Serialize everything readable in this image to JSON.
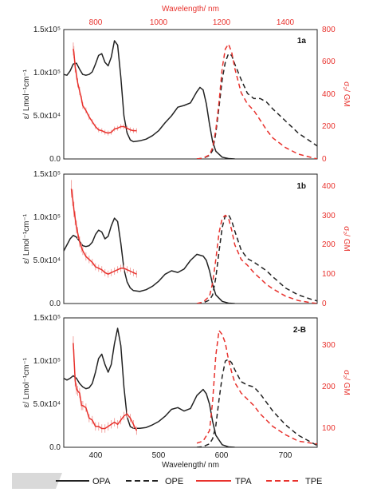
{
  "colors": {
    "opa": "#222222",
    "tpa": "#e8322d",
    "axis_right": "#e8322d",
    "band": "#d9d9d9"
  },
  "top_axis": {
    "label": "Wavelength/ nm",
    "ticks": [
      "800",
      "1000",
      "1200",
      "1400"
    ]
  },
  "bottom_axis": {
    "label": "Wavelength/ nm",
    "ticks": [
      "400",
      "500",
      "600",
      "700"
    ]
  },
  "legend": [
    {
      "label": "OPA",
      "style": "solid",
      "color": "#222222"
    },
    {
      "label": "OPE",
      "style": "dashed",
      "color": "#222222"
    },
    {
      "label": "TPA",
      "style": "solid",
      "color": "#e8322d"
    },
    {
      "label": "TPE",
      "style": "dashed",
      "color": "#e8322d"
    }
  ],
  "chart_data": [
    {
      "type": "line",
      "panel": "1a",
      "xlabel_bottom": "Wavelength/ nm",
      "xlim": [
        350,
        750
      ],
      "xlabel_top": "Wavelength/ nm",
      "xlim_top": [
        700,
        1500
      ],
      "ylabel_left": "ε/ Lmol⁻¹cm⁻¹",
      "ylim_left": [
        0,
        150000
      ],
      "yticks_left": [
        "0.0",
        "5.0x10⁴",
        "1.0x10⁵",
        "1.5x10⁵"
      ],
      "ylabel_right": "σ₂/ GM",
      "ylim_right": [
        0,
        800
      ],
      "yticks_right": [
        "0",
        "200",
        "400",
        "600",
        "800"
      ],
      "series": [
        {
          "name": "OPA",
          "axis": "left",
          "style": "solid",
          "x": [
            350,
            355,
            360,
            365,
            370,
            375,
            380,
            385,
            390,
            395,
            400,
            405,
            410,
            415,
            420,
            425,
            430,
            435,
            440,
            445,
            450,
            455,
            460,
            470,
            480,
            490,
            500,
            510,
            520,
            530,
            540,
            550,
            560,
            565,
            570,
            575,
            580,
            585,
            590,
            600,
            610,
            620
          ],
          "y": [
            98000,
            97000,
            102000,
            110000,
            111000,
            104000,
            98000,
            97000,
            98000,
            101000,
            110000,
            120000,
            122000,
            112000,
            108000,
            118000,
            137000,
            132000,
            95000,
            50000,
            30000,
            22000,
            20000,
            21000,
            23000,
            27000,
            33000,
            42000,
            50000,
            60000,
            62000,
            65000,
            78000,
            83000,
            80000,
            64000,
            40000,
            20000,
            9000,
            2000,
            500,
            0
          ]
        },
        {
          "name": "OPE",
          "axis": "left",
          "style": "dashed",
          "x": [
            560,
            570,
            580,
            585,
            590,
            595,
            600,
            605,
            610,
            615,
            620,
            630,
            640,
            650,
            660,
            670,
            680,
            700,
            720,
            740,
            750
          ],
          "y": [
            0,
            800,
            4000,
            10000,
            30000,
            60000,
            92000,
            112000,
            122000,
            120000,
            110000,
            92000,
            76000,
            70000,
            70000,
            66000,
            58000,
            44000,
            30000,
            20000,
            15000
          ]
        },
        {
          "name": "TPA",
          "axis": "right",
          "style": "solid",
          "x": [
            365,
            366,
            368,
            370,
            372,
            375,
            378,
            380,
            385,
            390,
            395,
            400,
            405,
            410,
            415,
            420,
            425,
            430,
            435,
            440,
            445,
            450,
            455,
            460,
            465
          ],
          "y": [
            680,
            660,
            570,
            520,
            470,
            420,
            370,
            330,
            300,
            260,
            230,
            200,
            180,
            175,
            165,
            160,
            165,
            185,
            190,
            200,
            200,
            190,
            180,
            175,
            175
          ],
          "err": [
            40,
            38,
            35,
            30,
            28,
            25,
            22,
            20,
            18,
            18,
            16,
            15,
            15,
            15,
            15,
            15,
            15,
            15,
            15,
            15,
            15,
            15,
            15,
            15,
            15
          ]
        },
        {
          "name": "TPE",
          "axis": "right",
          "style": "dashed",
          "x": [
            560,
            570,
            580,
            585,
            590,
            595,
            600,
            605,
            610,
            615,
            620,
            630,
            640,
            650,
            660,
            670,
            680,
            700,
            720,
            740,
            750
          ],
          "y": [
            0,
            5,
            25,
            70,
            180,
            350,
            560,
            680,
            710,
            660,
            560,
            410,
            340,
            300,
            240,
            180,
            130,
            70,
            30,
            10,
            0
          ]
        }
      ]
    },
    {
      "type": "line",
      "panel": "1b",
      "xlabel_bottom": "Wavelength/ nm",
      "xlim": [
        350,
        750
      ],
      "ylabel_left": "ε/ Lmol⁻¹cm⁻¹",
      "ylim_left": [
        0,
        150000
      ],
      "yticks_left": [
        "0.0",
        "5.0x10⁴",
        "1.0x10⁵",
        "1.5x10⁵"
      ],
      "ylabel_right": "σ₂/ GM",
      "ylim_right": [
        0,
        440
      ],
      "yticks_right": [
        "0",
        "100",
        "200",
        "300",
        "400"
      ],
      "series": [
        {
          "name": "OPA",
          "axis": "left",
          "style": "solid",
          "x": [
            350,
            355,
            360,
            365,
            370,
            375,
            380,
            385,
            390,
            395,
            400,
            405,
            410,
            415,
            420,
            425,
            430,
            435,
            440,
            445,
            450,
            455,
            460,
            470,
            480,
            490,
            500,
            510,
            520,
            530,
            540,
            550,
            560,
            570,
            575,
            580,
            585,
            590,
            600,
            610,
            620
          ],
          "y": [
            61000,
            68000,
            75000,
            79000,
            77000,
            72000,
            67000,
            66000,
            67000,
            71000,
            80000,
            85000,
            83000,
            75000,
            78000,
            90000,
            99000,
            95000,
            70000,
            40000,
            25000,
            18000,
            15000,
            14000,
            16000,
            20000,
            26000,
            34000,
            38000,
            36000,
            40000,
            50000,
            57000,
            55000,
            50000,
            38000,
            22000,
            10000,
            2500,
            500,
            0
          ]
        },
        {
          "name": "OPE",
          "axis": "left",
          "style": "dashed",
          "x": [
            560,
            570,
            580,
            585,
            590,
            595,
            600,
            605,
            610,
            615,
            620,
            630,
            640,
            650,
            660,
            670,
            680,
            700,
            720,
            740,
            750
          ],
          "y": [
            0,
            800,
            4000,
            10000,
            30000,
            60000,
            88000,
            102000,
            103000,
            96000,
            84000,
            62000,
            52000,
            48000,
            43000,
            38000,
            31000,
            18000,
            10000,
            5000,
            3000
          ]
        },
        {
          "name": "TPA",
          "axis": "right",
          "style": "solid",
          "x": [
            362,
            364,
            366,
            368,
            370,
            372,
            375,
            378,
            380,
            385,
            390,
            395,
            400,
            405,
            410,
            415,
            420,
            425,
            430,
            435,
            440,
            445,
            450,
            455,
            460,
            465
          ],
          "y": [
            390,
            360,
            320,
            290,
            260,
            240,
            210,
            190,
            180,
            160,
            150,
            140,
            125,
            120,
            115,
            105,
            100,
            105,
            110,
            115,
            120,
            120,
            115,
            110,
            105,
            100
          ],
          "err": [
            30,
            28,
            26,
            24,
            22,
            20,
            18,
            16,
            15,
            14,
            13,
            12,
            12,
            12,
            12,
            12,
            12,
            12,
            12,
            12,
            12,
            12,
            12,
            12,
            12,
            12
          ]
        },
        {
          "name": "TPE",
          "axis": "right",
          "style": "dashed",
          "x": [
            560,
            570,
            580,
            585,
            590,
            595,
            600,
            605,
            610,
            615,
            620,
            630,
            640,
            650,
            660,
            670,
            680,
            700,
            720,
            740,
            750
          ],
          "y": [
            0,
            5,
            25,
            70,
            150,
            240,
            290,
            300,
            290,
            250,
            200,
            150,
            130,
            105,
            85,
            65,
            50,
            25,
            10,
            3,
            0
          ]
        }
      ]
    },
    {
      "type": "line",
      "panel": "2-B",
      "xlabel_bottom": "Wavelength/ nm",
      "xlim": [
        350,
        750
      ],
      "xticks": [
        "400",
        "500",
        "600",
        "700"
      ],
      "ylabel_left": "ε/ Lmol⁻¹cm⁻¹",
      "ylim_left": [
        0,
        150000
      ],
      "yticks_left": [
        "0.0",
        "5.0x10⁴",
        "1.0x10⁵",
        "1.5x10⁵"
      ],
      "ylabel_right": "σ₂/ GM",
      "ylim_right": [
        30,
        340
      ],
      "yticks_right": [
        "100",
        "200",
        "300"
      ],
      "series": [
        {
          "name": "OPA",
          "axis": "left",
          "style": "solid",
          "x": [
            350,
            355,
            360,
            365,
            370,
            375,
            380,
            385,
            390,
            395,
            400,
            405,
            410,
            415,
            420,
            425,
            430,
            435,
            440,
            445,
            450,
            455,
            460,
            470,
            480,
            490,
            500,
            510,
            520,
            530,
            540,
            550,
            560,
            570,
            575,
            580,
            585,
            590,
            600,
            610,
            620
          ],
          "y": [
            80000,
            78000,
            80000,
            83000,
            80000,
            74000,
            70000,
            68000,
            69000,
            74000,
            87000,
            103000,
            108000,
            96000,
            87000,
            96000,
            120000,
            138000,
            118000,
            70000,
            35000,
            24000,
            22000,
            22000,
            23000,
            26000,
            30000,
            36000,
            44000,
            46000,
            42000,
            45000,
            60000,
            67000,
            62000,
            50000,
            30000,
            14000,
            3000,
            500,
            0
          ]
        },
        {
          "name": "OPE",
          "axis": "left",
          "style": "dashed",
          "x": [
            560,
            570,
            580,
            585,
            590,
            595,
            600,
            605,
            610,
            615,
            620,
            630,
            640,
            650,
            660,
            670,
            680,
            700,
            720,
            740,
            750
          ],
          "y": [
            0,
            800,
            4000,
            10000,
            25000,
            55000,
            82000,
            100000,
            102000,
            98000,
            90000,
            76000,
            72000,
            70000,
            62000,
            52000,
            42000,
            26000,
            14000,
            6000,
            2000
          ]
        },
        {
          "name": "TPA",
          "axis": "right",
          "style": "solid",
          "x": [
            365,
            366,
            368,
            370,
            372,
            375,
            378,
            380,
            385,
            390,
            395,
            400,
            405,
            410,
            415,
            420,
            425,
            430,
            435,
            440,
            445,
            450,
            455,
            460,
            465
          ],
          "y": [
            280,
            250,
            190,
            170,
            165,
            160,
            130,
            130,
            125,
            100,
            95,
            80,
            80,
            75,
            75,
            80,
            85,
            90,
            85,
            95,
            105,
            110,
            100,
            85,
            70
          ],
          "err": [
            16,
            15,
            14,
            13,
            12,
            12,
            11,
            11,
            10,
            10,
            10,
            10,
            10,
            10,
            10,
            10,
            10,
            10,
            10,
            10,
            10,
            10,
            10,
            10,
            10
          ]
        },
        {
          "name": "TPE",
          "axis": "right",
          "style": "dashed",
          "x": [
            560,
            570,
            580,
            585,
            590,
            595,
            600,
            605,
            610,
            615,
            620,
            630,
            640,
            650,
            660,
            670,
            680,
            700,
            720,
            740,
            750
          ],
          "y": [
            40,
            45,
            70,
            140,
            250,
            310,
            300,
            280,
            240,
            210,
            185,
            160,
            145,
            130,
            110,
            95,
            80,
            60,
            45,
            40,
            38
          ]
        }
      ]
    }
  ]
}
